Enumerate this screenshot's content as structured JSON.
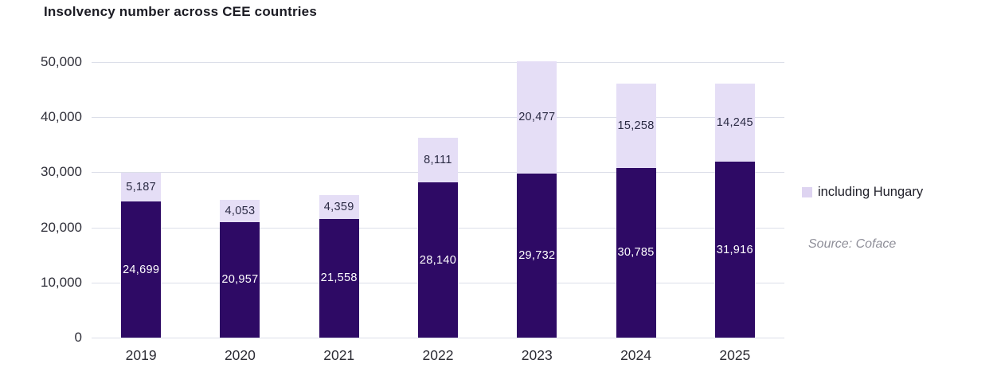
{
  "title": "Insolvency number across CEE countries",
  "legend": {
    "label": "including Hungary",
    "swatch_color": "#ded4f1"
  },
  "source": "Source: Coface",
  "colors": {
    "dark_bar": "#2e0a65",
    "light_bar": "#e5def6",
    "grid": "#dcdfe9",
    "title_text": "#1b1b23",
    "axis_text": "#30303a",
    "label_on_dark": "#ffffff",
    "label_on_light": "#2b2b44",
    "source_text": "#8f8f99"
  },
  "chart_data": {
    "type": "bar",
    "stacked": true,
    "title": "Insolvency number across CEE countries",
    "categories": [
      "2019",
      "2020",
      "2021",
      "2022",
      "2023",
      "2024",
      "2025"
    ],
    "series": [
      {
        "name": "",
        "color": "#2e0a65",
        "label_color": "#ffffff",
        "legend_visible": false,
        "values": [
          24699,
          20957,
          21558,
          28140,
          29732,
          30785,
          31916
        ],
        "labels": [
          "24,699",
          "20,957",
          "21,558",
          "28,140",
          "29,732",
          "30,785",
          "31,916"
        ]
      },
      {
        "name": "including Hungary",
        "color": "#e5def6",
        "label_color": "#2b2b44",
        "legend_visible": true,
        "values": [
          5187,
          4053,
          4359,
          8111,
          20477,
          15258,
          14245
        ],
        "labels": [
          "5,187",
          "4,053",
          "4,359",
          "8,111",
          "20,477",
          "15,258",
          "14,245"
        ]
      }
    ],
    "ylim": [
      0,
      50000
    ],
    "ytick_values": [
      0,
      10000,
      20000,
      30000,
      40000,
      50000
    ],
    "ytick_labels": [
      "0",
      "10,000",
      "20,000",
      "30,000",
      "40,000",
      "50,000"
    ],
    "grid": true,
    "legend_position": "right",
    "xlabel": "",
    "ylabel": ""
  }
}
